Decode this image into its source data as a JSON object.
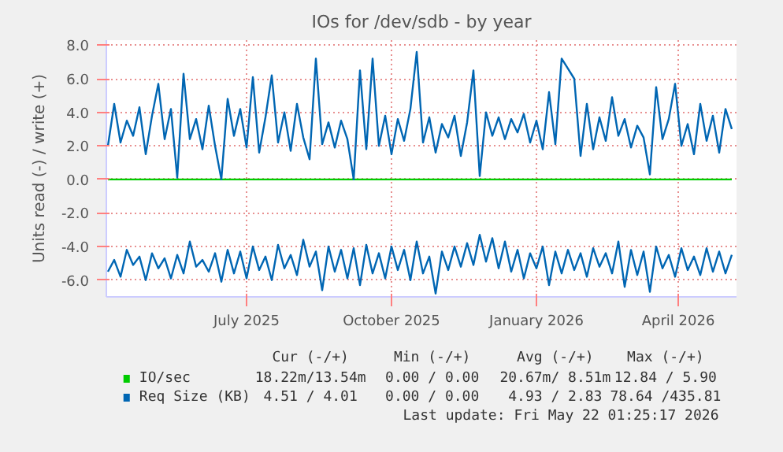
{
  "chart_data": {
    "type": "line",
    "title": "IOs for /dev/sdb - by year",
    "ylabel": "Units read (-) / write (+)",
    "x": [
      "2025-04-04",
      "2025-04-08",
      "2025-04-12",
      "2025-04-16",
      "2025-04-20",
      "2025-04-24",
      "2025-04-28",
      "2025-05-02",
      "2025-05-06",
      "2025-05-10",
      "2025-05-14",
      "2025-05-18",
      "2025-05-22",
      "2025-05-26",
      "2025-05-30",
      "2025-06-03",
      "2025-06-07",
      "2025-06-11",
      "2025-06-15",
      "2025-06-19",
      "2025-06-23",
      "2025-06-27",
      "2025-07-01",
      "2025-07-05",
      "2025-07-09",
      "2025-07-13",
      "2025-07-17",
      "2025-07-21",
      "2025-07-25",
      "2025-07-29",
      "2025-08-02",
      "2025-08-06",
      "2025-08-10",
      "2025-08-14",
      "2025-08-18",
      "2025-08-22",
      "2025-08-26",
      "2025-08-30",
      "2025-09-03",
      "2025-09-07",
      "2025-09-11",
      "2025-09-15",
      "2025-09-19",
      "2025-09-23",
      "2025-09-27",
      "2025-10-01",
      "2025-10-05",
      "2025-10-09",
      "2025-10-13",
      "2025-10-17",
      "2025-10-21",
      "2025-10-25",
      "2025-10-29",
      "2025-11-02",
      "2025-11-06",
      "2025-11-10",
      "2025-11-14",
      "2025-11-18",
      "2025-11-22",
      "2025-11-26",
      "2025-11-30",
      "2025-12-04",
      "2025-12-08",
      "2025-12-12",
      "2025-12-16",
      "2025-12-20",
      "2025-12-24",
      "2025-12-28",
      "2026-01-01",
      "2026-01-05",
      "2026-01-09",
      "2026-01-13",
      "2026-01-17",
      "2026-01-21",
      "2026-01-25",
      "2026-01-29",
      "2026-02-02",
      "2026-02-06",
      "2026-02-10",
      "2026-02-14",
      "2026-02-18",
      "2026-02-22",
      "2026-02-26",
      "2026-03-02",
      "2026-03-06",
      "2026-03-10",
      "2026-03-14",
      "2026-03-18",
      "2026-03-22",
      "2026-03-26",
      "2026-03-30",
      "2026-04-03",
      "2026-04-07",
      "2026-04-11",
      "2026-04-15",
      "2026-04-19",
      "2026-04-23",
      "2026-04-27",
      "2026-05-01",
      "2026-05-05"
    ],
    "series": [
      {
        "name": "IO/sec",
        "color": "#00cc00",
        "x": [
          "2025-04-04",
          "2026-05-05"
        ],
        "values": [
          0.0,
          0.0
        ]
      },
      {
        "name": "Req Size (KB)",
        "color": "#0066b3",
        "values": [
          2.0,
          4.5,
          2.2,
          3.5,
          2.6,
          4.3,
          1.5,
          3.8,
          5.7,
          2.4,
          4.2,
          0.1,
          6.3,
          2.4,
          3.6,
          1.8,
          4.4,
          2.0,
          0.0,
          4.8,
          2.6,
          4.2,
          1.9,
          6.1,
          1.6,
          3.7,
          6.2,
          2.2,
          4.0,
          1.7,
          4.5,
          2.5,
          1.2,
          7.2,
          2.1,
          3.4,
          1.9,
          3.5,
          2.4,
          0.0,
          6.5,
          1.8,
          7.2,
          2.0,
          3.8,
          1.5,
          3.6,
          2.3,
          4.2,
          7.6,
          2.2,
          3.7,
          1.6,
          3.3,
          2.5,
          3.8,
          1.4,
          3.4,
          6.5,
          0.2,
          4.0,
          2.6,
          3.7,
          2.4,
          3.6,
          2.8,
          3.9,
          2.2,
          3.5,
          1.8,
          5.2,
          2.1,
          7.2,
          6.6,
          6.0,
          1.4,
          4.5,
          1.8,
          3.7,
          2.3,
          4.9,
          2.6,
          3.6,
          1.9,
          3.2,
          2.5,
          0.3,
          5.5,
          2.4,
          3.6,
          5.7,
          2.0,
          3.3,
          1.5,
          4.5,
          2.3,
          3.8,
          1.6,
          4.2,
          3.0
        ]
      },
      {
        "color": "#0066b3",
        "values": [
          -5.5,
          -4.8,
          -5.8,
          -4.2,
          -5.1,
          -4.6,
          -6.0,
          -4.4,
          -5.3,
          -4.7,
          -5.9,
          -4.5,
          -5.6,
          -3.7,
          -5.2,
          -4.8,
          -5.5,
          -4.4,
          -6.1,
          -4.2,
          -5.6,
          -4.3,
          -5.9,
          -4.0,
          -5.4,
          -4.6,
          -6.0,
          -3.9,
          -5.3,
          -4.5,
          -5.7,
          -3.6,
          -5.2,
          -4.3,
          -6.6,
          -4.0,
          -5.5,
          -4.2,
          -5.9,
          -4.1,
          -6.3,
          -3.9,
          -5.6,
          -4.4,
          -5.9,
          -4.0,
          -5.4,
          -4.2,
          -6.0,
          -3.7,
          -5.6,
          -4.6,
          -6.8,
          -4.3,
          -5.4,
          -4.0,
          -5.2,
          -3.8,
          -5.1,
          -3.3,
          -4.9,
          -3.5,
          -5.3,
          -3.7,
          -5.5,
          -4.2,
          -5.9,
          -4.4,
          -5.3,
          -4.0,
          -6.3,
          -4.3,
          -5.6,
          -4.2,
          -5.4,
          -4.4,
          -5.8,
          -4.1,
          -5.2,
          -4.4,
          -5.6,
          -3.7,
          -6.4,
          -4.2,
          -5.7,
          -4.3,
          -6.7,
          -4.0,
          -5.3,
          -4.5,
          -5.8,
          -4.1,
          -5.4,
          -4.6,
          -5.7,
          -4.1,
          -5.5,
          -4.3,
          -5.6,
          -4.5
        ]
      }
    ],
    "xlim": [
      "2025-04-03",
      "2026-05-08"
    ],
    "xticks": [
      {
        "value": "2025-07-01",
        "label": "July 2025"
      },
      {
        "value": "2025-10-01",
        "label": "October 2025"
      },
      {
        "value": "2026-01-01",
        "label": "January 2026"
      },
      {
        "value": "2026-04-01",
        "label": "April 2026"
      }
    ],
    "ylim": [
      -7.0,
      8.3
    ],
    "yticks": [
      {
        "value": -6,
        "label": "-6.0"
      },
      {
        "value": -4,
        "label": "-4.0"
      },
      {
        "value": -2,
        "label": "-2.0"
      },
      {
        "value": 0,
        "label": "0.0"
      },
      {
        "value": 2,
        "label": "2.0"
      },
      {
        "value": 4,
        "label": "4.0"
      },
      {
        "value": 6,
        "label": "6.0"
      },
      {
        "value": 8,
        "label": "8.0"
      }
    ],
    "grid": true,
    "legend": "bottom",
    "marker": "none",
    "line_style": "solid",
    "annotations": [
      "Cur (-/+)",
      "Min (-/+)",
      "Avg (-/+)",
      "Max (-/+)",
      "18.22m/13.54m",
      "0.00 / 0.00",
      "20.67m/ 8.51m",
      "12.84 / 5.90",
      "4.51 / 4.01",
      "0.00 / 0.00",
      "4.93 / 2.83",
      "78.64 /435.81",
      "Last update: Fri May 22 01:25:17 2026"
    ]
  }
}
